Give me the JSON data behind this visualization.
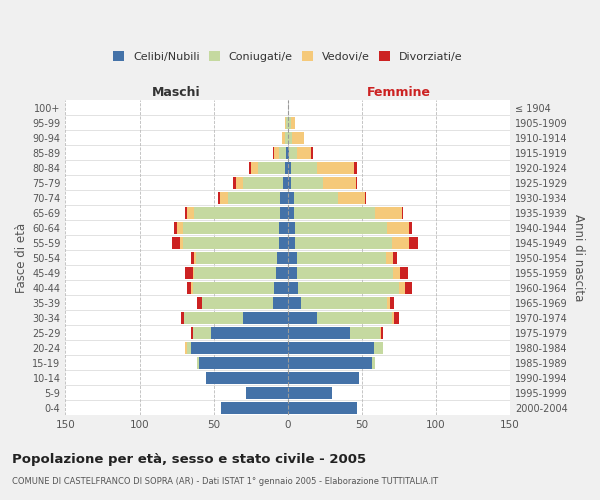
{
  "age_groups": [
    "0-4",
    "5-9",
    "10-14",
    "15-19",
    "20-24",
    "25-29",
    "30-34",
    "35-39",
    "40-44",
    "45-49",
    "50-54",
    "55-59",
    "60-64",
    "65-69",
    "70-74",
    "75-79",
    "80-84",
    "85-89",
    "90-94",
    "95-99",
    "100+"
  ],
  "birth_years": [
    "2000-2004",
    "1995-1999",
    "1990-1994",
    "1985-1989",
    "1980-1984",
    "1975-1979",
    "1970-1974",
    "1965-1969",
    "1960-1964",
    "1955-1959",
    "1950-1954",
    "1945-1949",
    "1940-1944",
    "1935-1939",
    "1930-1934",
    "1925-1929",
    "1920-1924",
    "1915-1919",
    "1910-1914",
    "1905-1909",
    "≤ 1904"
  ],
  "maschi": {
    "celibi": [
      45,
      28,
      55,
      60,
      65,
      52,
      30,
      10,
      9,
      8,
      7,
      6,
      6,
      5,
      5,
      3,
      2,
      1,
      0,
      0,
      0
    ],
    "coniugati": [
      0,
      0,
      0,
      1,
      3,
      12,
      40,
      48,
      55,
      55,
      55,
      65,
      65,
      58,
      35,
      27,
      18,
      5,
      2,
      1,
      0
    ],
    "vedovi": [
      0,
      0,
      0,
      0,
      1,
      0,
      0,
      0,
      1,
      1,
      1,
      2,
      4,
      5,
      6,
      5,
      5,
      3,
      2,
      1,
      0
    ],
    "divorziati": [
      0,
      0,
      0,
      0,
      0,
      1,
      2,
      3,
      3,
      5,
      2,
      5,
      2,
      1,
      1,
      2,
      1,
      1,
      0,
      0,
      0
    ]
  },
  "femmine": {
    "nubili": [
      47,
      30,
      48,
      57,
      58,
      42,
      20,
      9,
      7,
      6,
      6,
      5,
      5,
      4,
      4,
      2,
      2,
      1,
      0,
      0,
      0
    ],
    "coniugate": [
      0,
      0,
      0,
      2,
      6,
      20,
      50,
      58,
      68,
      65,
      60,
      65,
      62,
      55,
      30,
      22,
      18,
      5,
      3,
      2,
      0
    ],
    "vedove": [
      0,
      0,
      0,
      0,
      0,
      1,
      2,
      2,
      4,
      5,
      5,
      12,
      15,
      18,
      18,
      22,
      25,
      10,
      8,
      3,
      0
    ],
    "divorziate": [
      0,
      0,
      0,
      0,
      0,
      1,
      3,
      3,
      5,
      5,
      3,
      6,
      2,
      1,
      1,
      1,
      2,
      1,
      0,
      0,
      0
    ]
  },
  "colors": {
    "celibi": "#4472a8",
    "coniugati": "#c5d9a0",
    "vedovi": "#f5c97a",
    "divorziati": "#cc2222"
  },
  "xlim": 150,
  "title": "Popolazione per età, sesso e stato civile - 2005",
  "subtitle": "COMUNE DI CASTELFRANCO DI SOPRA (AR) - Dati ISTAT 1° gennaio 2005 - Elaborazione TUTTITALIA.IT",
  "ylabel_left": "Fasce di età",
  "ylabel_right": "Anni di nascita",
  "xlabel_left": "Maschi",
  "xlabel_right": "Femmine",
  "background_color": "#f0f0f0",
  "plot_bg": "#ffffff"
}
